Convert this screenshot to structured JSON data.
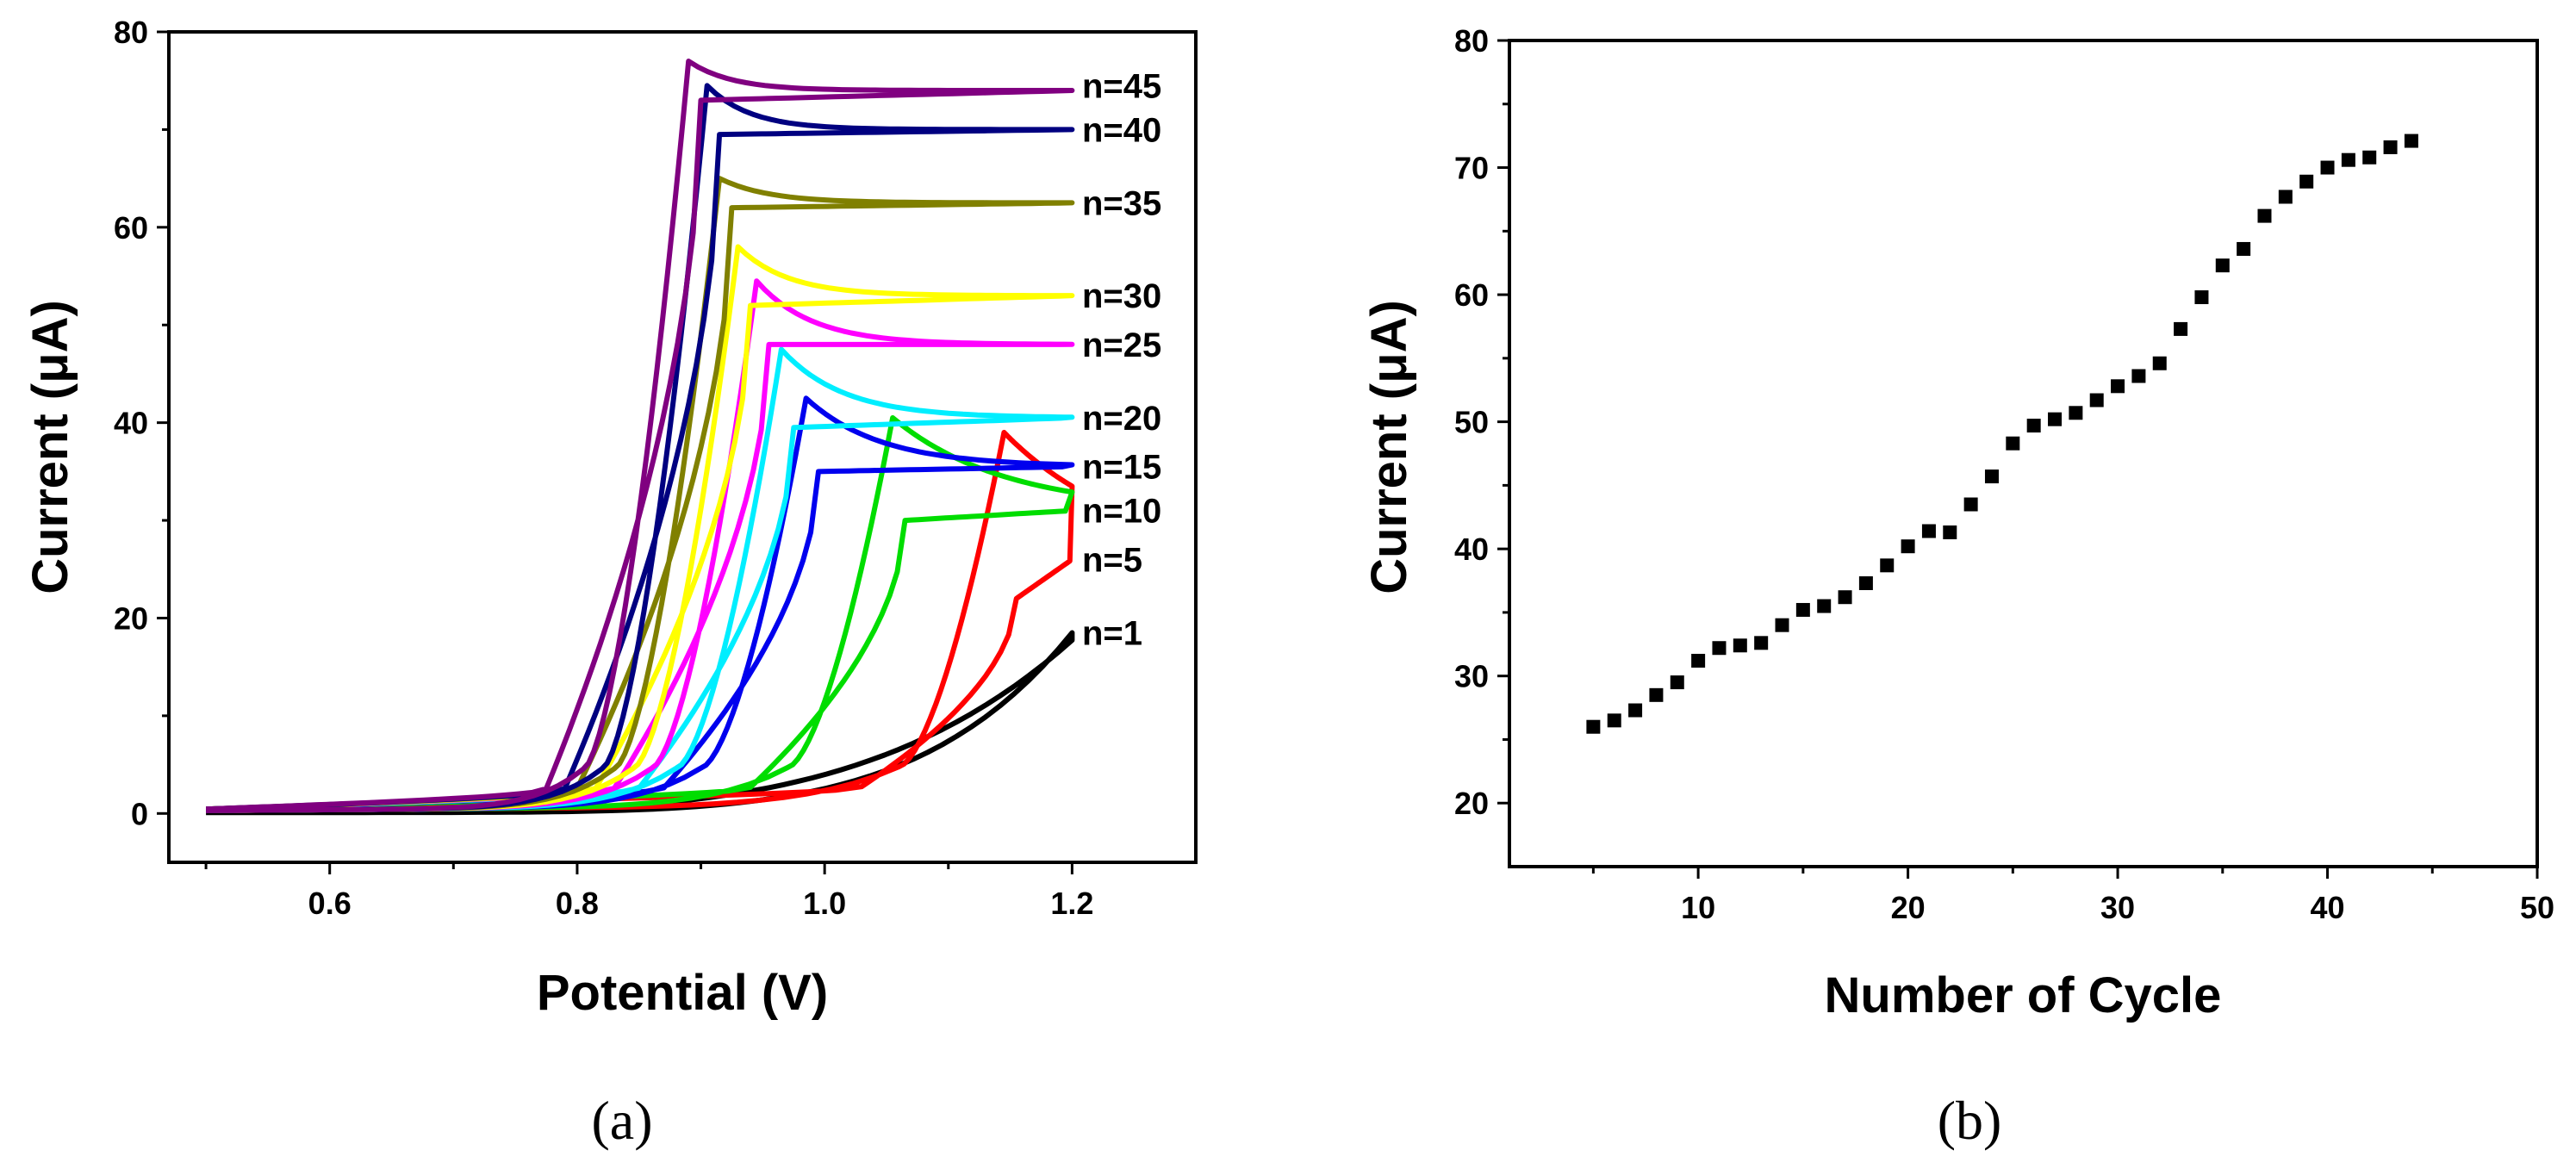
{
  "chart_data": [
    {
      "type": "line",
      "panel_label": "(a)",
      "xlabel": "Potential (V)",
      "ylabel": "Current (μA)",
      "xlim": [
        0.47,
        1.3
      ],
      "ylim": [
        -5,
        80
      ],
      "xticks": [
        0.6,
        0.8,
        1.0,
        1.2
      ],
      "xtick_labels": [
        "0.6",
        "0.8",
        "1.0",
        "1.2"
      ],
      "yticks": [
        0,
        20,
        40,
        60,
        80
      ],
      "ytick_labels": [
        "0",
        "20",
        "40",
        "60",
        "80"
      ],
      "series": [
        {
          "name": "n=1",
          "label_y": 18.5,
          "color": "#000000",
          "vpeak": null,
          "ipeak": null,
          "irev": 18,
          "iret": 16,
          "k": 0.08
        },
        {
          "name": "n=5",
          "label_y": 26,
          "color": "#ff0000",
          "vpeak": 1.145,
          "ipeak": 39,
          "irev": 26,
          "iret": 22,
          "k": 0.1
        },
        {
          "name": "n=10",
          "label_y": 31,
          "color": "#00dd00",
          "vpeak": 1.055,
          "ipeak": 40.5,
          "irev": 31,
          "iret": 30,
          "k": 0.09
        },
        {
          "name": "n=15",
          "label_y": 35.5,
          "color": "#0000ee",
          "vpeak": 0.985,
          "ipeak": 42.5,
          "irev": 35.5,
          "iret": 35,
          "k": 0.06
        },
        {
          "name": "n=20",
          "label_y": 40.5,
          "color": "#00eeff",
          "vpeak": 0.965,
          "ipeak": 47.5,
          "irev": 40.5,
          "iret": 39.5,
          "k": 0.05
        },
        {
          "name": "n=25",
          "label_y": 48,
          "color": "#ff00ff",
          "vpeak": 0.945,
          "ipeak": 54.5,
          "irev": 48,
          "iret": 48,
          "k": 0.045
        },
        {
          "name": "n=30",
          "label_y": 53,
          "color": "#ffff00",
          "vpeak": 0.93,
          "ipeak": 58,
          "irev": 53,
          "iret": 52,
          "k": 0.04
        },
        {
          "name": "n=35",
          "label_y": 62.5,
          "color": "#808000",
          "vpeak": 0.915,
          "ipeak": 65,
          "irev": 62.5,
          "iret": 62,
          "k": 0.04
        },
        {
          "name": "n=40",
          "label_y": 70,
          "color": "#000080",
          "vpeak": 0.905,
          "ipeak": 74.5,
          "irev": 70,
          "iret": 69.5,
          "k": 0.035
        },
        {
          "name": "n=45",
          "label_y": 74.5,
          "color": "#800080",
          "vpeak": 0.89,
          "ipeak": 77,
          "irev": 74,
          "iret": 73,
          "k": 0.035
        }
      ]
    },
    {
      "type": "scatter",
      "panel_label": "(b)",
      "xlabel": "Number of Cycle",
      "ylabel": "Current (μA)",
      "xlim": [
        1,
        50
      ],
      "ylim": [
        15,
        80
      ],
      "xticks": [
        10,
        20,
        30,
        40,
        50
      ],
      "xtick_labels": [
        "10",
        "20",
        "30",
        "40",
        "50"
      ],
      "yticks": [
        20,
        30,
        40,
        50,
        60,
        70,
        80
      ],
      "ytick_labels": [
        "20",
        "30",
        "40",
        "50",
        "60",
        "70",
        "80"
      ],
      "marker_color": "#000000",
      "x": [
        5,
        6,
        7,
        8,
        9,
        10,
        11,
        12,
        13,
        14,
        15,
        16,
        17,
        18,
        19,
        20,
        21,
        22,
        23,
        24,
        25,
        26,
        27,
        28,
        29,
        30,
        31,
        32,
        33,
        34,
        35,
        36,
        37,
        38,
        39,
        40,
        41,
        42,
        43,
        44
      ],
      "y": [
        26,
        26.5,
        27.3,
        28.5,
        29.5,
        31.2,
        32.2,
        32.4,
        32.6,
        34,
        35.2,
        35.5,
        36.2,
        37.3,
        38.7,
        40.2,
        41.4,
        41.3,
        43.5,
        45.7,
        48.3,
        49.7,
        50.2,
        50.7,
        51.7,
        52.8,
        53.6,
        54.6,
        57.3,
        59.8,
        62.3,
        63.6,
        66.2,
        67.7,
        68.9,
        70,
        70.6,
        70.8,
        71.6,
        72.1
      ]
    }
  ]
}
